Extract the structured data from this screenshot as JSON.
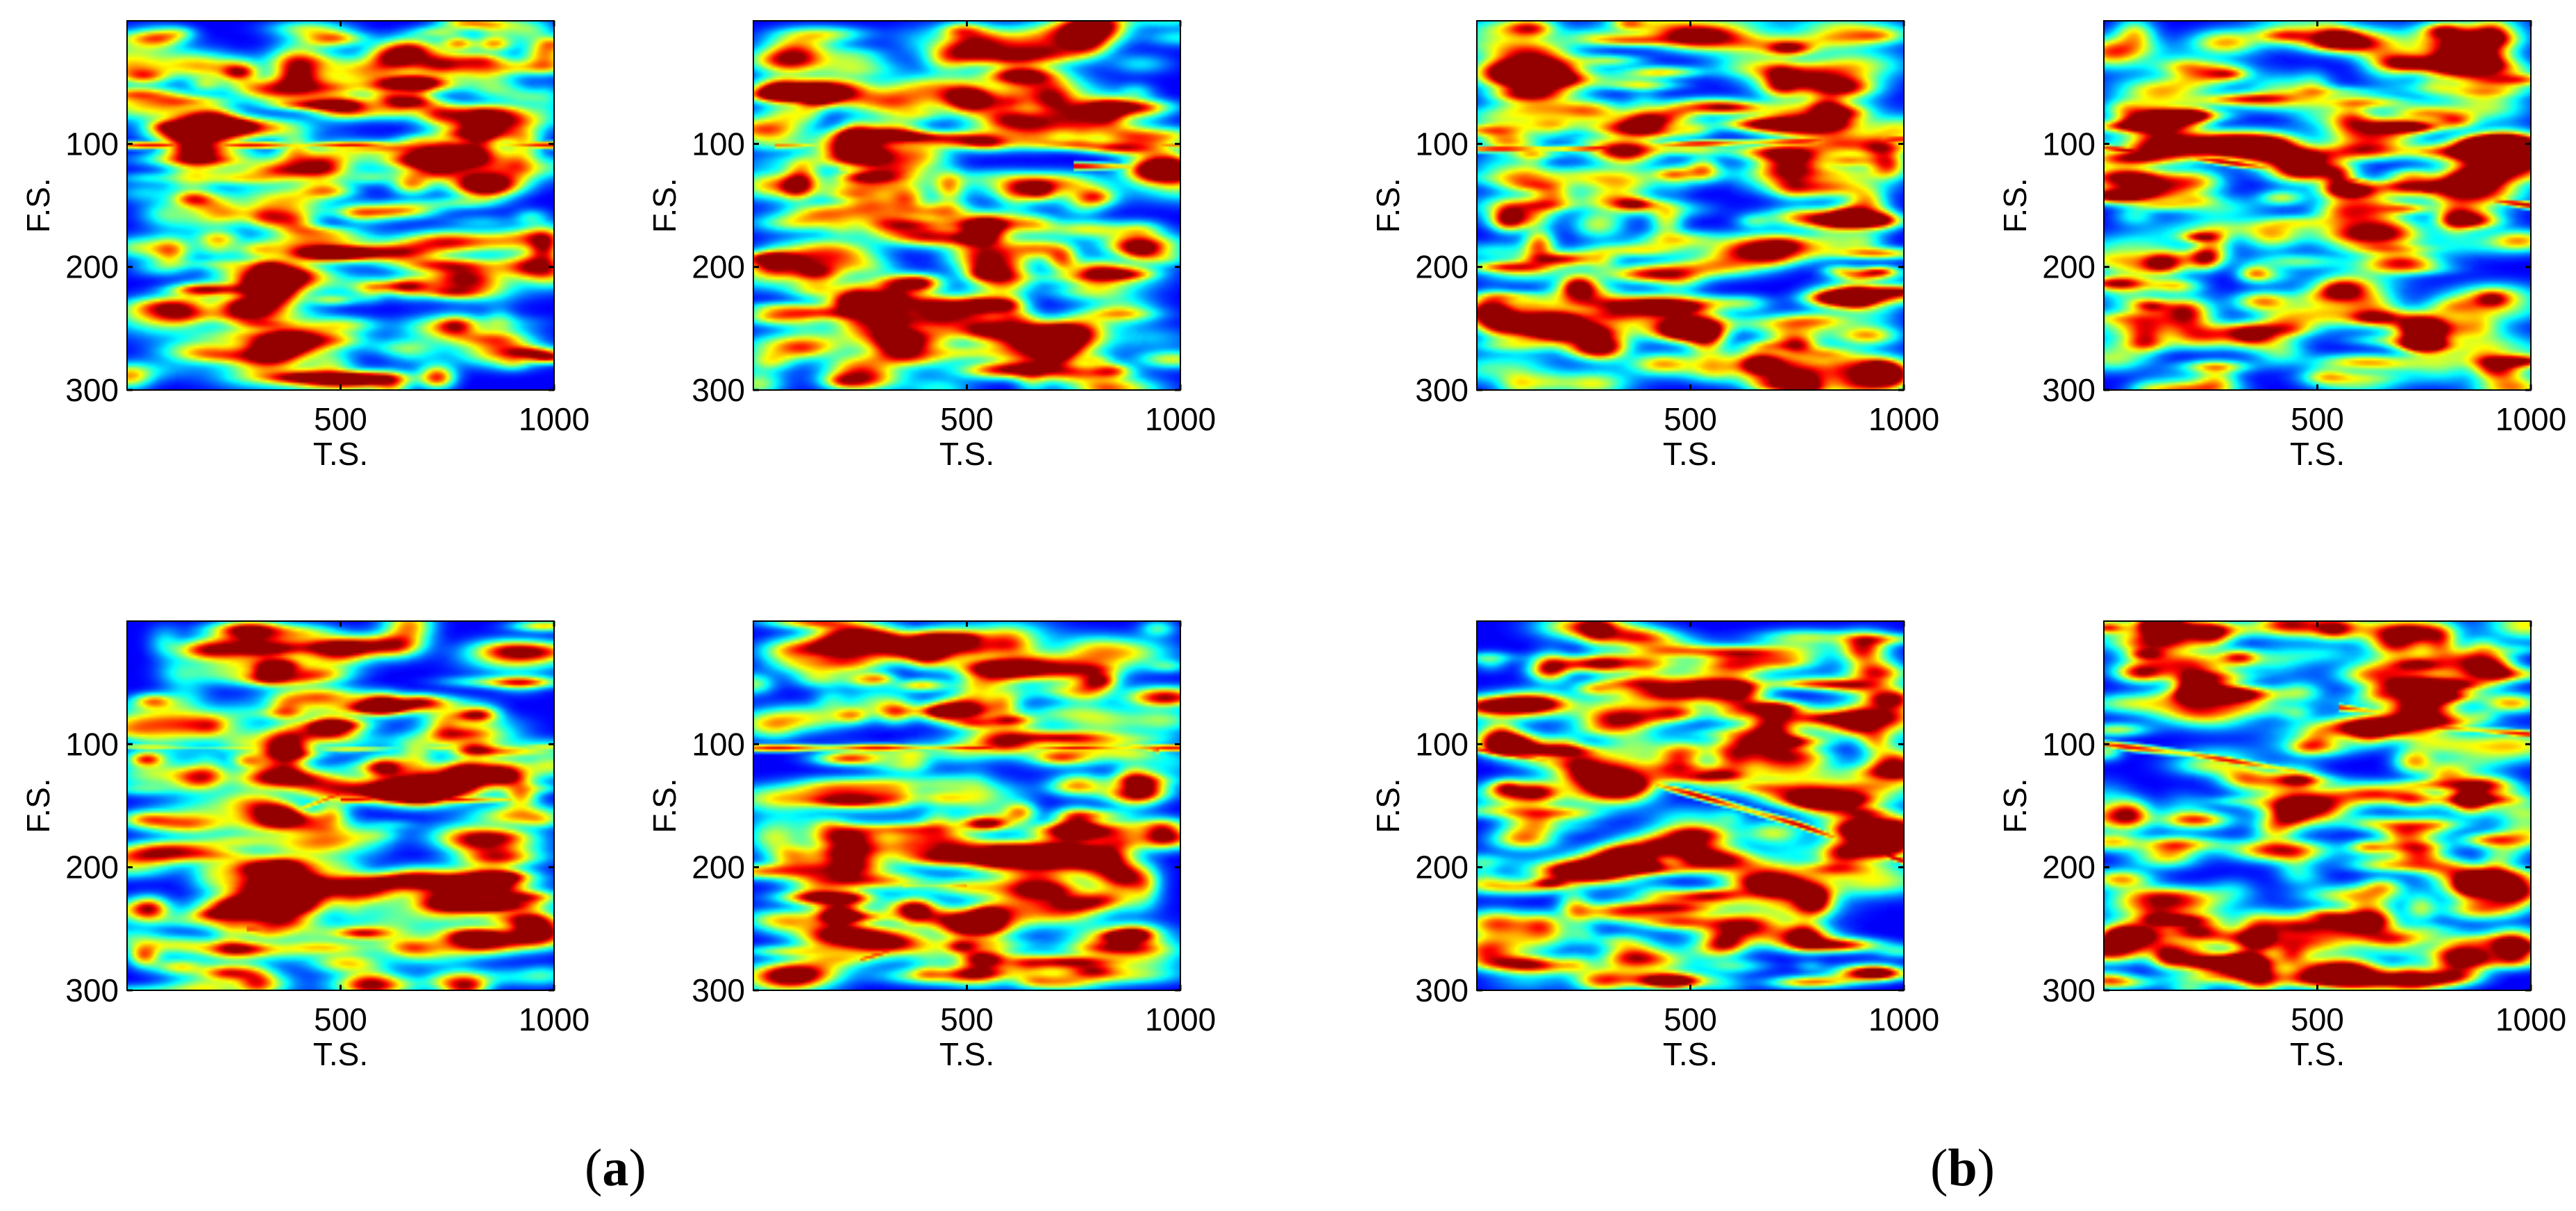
{
  "panel_labels": {
    "a": "a",
    "b": "b"
  },
  "chart_data": [
    {
      "type": "heatmap",
      "group": "a",
      "colormap": "jet",
      "xlabel": "T.S.",
      "ylabel": "F.S.",
      "xlim": [
        0,
        1000
      ],
      "ylim": [
        300,
        0
      ],
      "xticks": [
        500,
        1000
      ],
      "yticks": [
        100,
        200,
        300
      ],
      "ridges": [
        {
          "points": [
            [
              0,
              101
            ],
            [
              250,
              101
            ],
            [
              500,
              101
            ],
            [
              750,
              100
            ],
            [
              1000,
              101
            ]
          ],
          "peak": 0.9
        }
      ]
    },
    {
      "type": "heatmap",
      "group": "a",
      "colormap": "jet",
      "xlabel": "T.S.",
      "ylabel": "F.S.",
      "xlim": [
        0,
        1000
      ],
      "ylim": [
        300,
        0
      ],
      "xticks": [
        500,
        1000
      ],
      "yticks": [
        100,
        200,
        300
      ],
      "ridges": [
        {
          "points": [
            [
              50,
              101
            ],
            [
              250,
              101
            ],
            [
              500,
              101
            ],
            [
              750,
              101
            ],
            [
              1000,
              101
            ]
          ],
          "peak": 0.75
        },
        {
          "points": [
            [
              200,
              120
            ],
            [
              400,
              120
            ]
          ],
          "peak": 0.82
        },
        {
          "points": [
            [
              750,
              118
            ],
            [
              1000,
              119
            ]
          ],
          "peak": 0.95
        }
      ]
    },
    {
      "type": "heatmap",
      "group": "b",
      "colormap": "jet",
      "xlabel": "T.S.",
      "ylabel": "F.S.",
      "xlim": [
        0,
        1000
      ],
      "ylim": [
        300,
        0
      ],
      "xticks": [
        500,
        1000
      ],
      "yticks": [
        100,
        200,
        300
      ],
      "ridges": [
        {
          "points": [
            [
              0,
              104
            ],
            [
              250,
              104
            ],
            [
              500,
              100
            ],
            [
              750,
              98
            ],
            [
              1000,
              96
            ]
          ],
          "peak": 0.9
        }
      ]
    },
    {
      "type": "heatmap",
      "group": "b",
      "colormap": "jet",
      "xlabel": "T.S.",
      "ylabel": "F.S.",
      "xlim": [
        0,
        1000
      ],
      "ylim": [
        300,
        0
      ],
      "xticks": [
        500,
        1000
      ],
      "yticks": [
        100,
        200,
        300
      ],
      "ridges": [
        {
          "points": [
            [
              0,
              103
            ],
            [
              250,
              113
            ],
            [
              500,
              125
            ],
            [
              750,
              138
            ],
            [
              1000,
              150
            ]
          ],
          "peak": 0.95
        }
      ]
    },
    {
      "type": "heatmap",
      "group": "a",
      "colormap": "jet",
      "xlabel": "T.S.",
      "ylabel": "F.S.",
      "xlim": [
        0,
        1000
      ],
      "ylim": [
        300,
        0
      ],
      "xticks": [
        500,
        1000
      ],
      "yticks": [
        100,
        200,
        300
      ],
      "ridges": [
        {
          "points": [
            [
              0,
              102
            ],
            [
              250,
              103
            ],
            [
              500,
              104
            ],
            [
              750,
              103
            ],
            [
              1000,
              102
            ]
          ],
          "peak": 0.62
        },
        {
          "points": [
            [
              350,
              160
            ],
            [
              500,
              140
            ],
            [
              650,
              125
            ]
          ],
          "peak": 0.9
        },
        {
          "points": [
            [
              500,
              145
            ],
            [
              650,
              145
            ],
            [
              900,
              145
            ]
          ],
          "peak": 0.9
        },
        {
          "points": [
            [
              280,
              250
            ],
            [
              400,
              250
            ]
          ],
          "peak": 0.85
        },
        {
          "points": [
            [
              800,
              230
            ],
            [
              950,
              230
            ]
          ],
          "peak": 0.85
        }
      ]
    },
    {
      "type": "heatmap",
      "group": "a",
      "colormap": "jet",
      "xlabel": "T.S.",
      "ylabel": "F.S.",
      "xlim": [
        0,
        1000
      ],
      "ylim": [
        300,
        0
      ],
      "xticks": [
        500,
        1000
      ],
      "yticks": [
        100,
        200,
        300
      ],
      "ridges": [
        {
          "points": [
            [
              0,
              103
            ],
            [
              250,
              103
            ],
            [
              500,
              103
            ],
            [
              750,
              103
            ],
            [
              1000,
              103
            ]
          ],
          "peak": 0.9
        },
        {
          "points": [
            [
              800,
              95
            ],
            [
              950,
              105
            ]
          ],
          "peak": 0.85
        },
        {
          "points": [
            [
              250,
              275
            ],
            [
              400,
              260
            ]
          ],
          "peak": 0.82
        },
        {
          "points": [
            [
              350,
              215
            ],
            [
              500,
              215
            ]
          ],
          "peak": 0.75
        }
      ]
    },
    {
      "type": "heatmap",
      "group": "b",
      "colormap": "jet",
      "xlabel": "T.S.",
      "ylabel": "F.S.",
      "xlim": [
        0,
        1000
      ],
      "ylim": [
        300,
        0
      ],
      "xticks": [
        500,
        1000
      ],
      "yticks": [
        100,
        200,
        300
      ],
      "ridges": [
        {
          "points": [
            [
              0,
              104
            ],
            [
              250,
              118
            ],
            [
              500,
              140
            ],
            [
              750,
              165
            ],
            [
              1000,
              195
            ]
          ],
          "peak": 0.95
        }
      ]
    },
    {
      "type": "heatmap",
      "group": "b",
      "colormap": "jet",
      "xlabel": "T.S.",
      "ylabel": "F.S.",
      "xlim": [
        0,
        1000
      ],
      "ylim": [
        300,
        0
      ],
      "xticks": [
        500,
        1000
      ],
      "yticks": [
        100,
        200,
        300
      ],
      "ridges": [
        {
          "points": [
            [
              0,
              100
            ],
            [
              200,
              108
            ],
            [
              450,
              122
            ]
          ],
          "peak": 0.9
        },
        {
          "points": [
            [
              550,
              70
            ],
            [
              750,
              78
            ]
          ],
          "peak": 0.92
        },
        {
          "points": [
            [
              750,
              85
            ],
            [
              1000,
              92
            ]
          ],
          "peak": 0.9
        }
      ]
    }
  ]
}
